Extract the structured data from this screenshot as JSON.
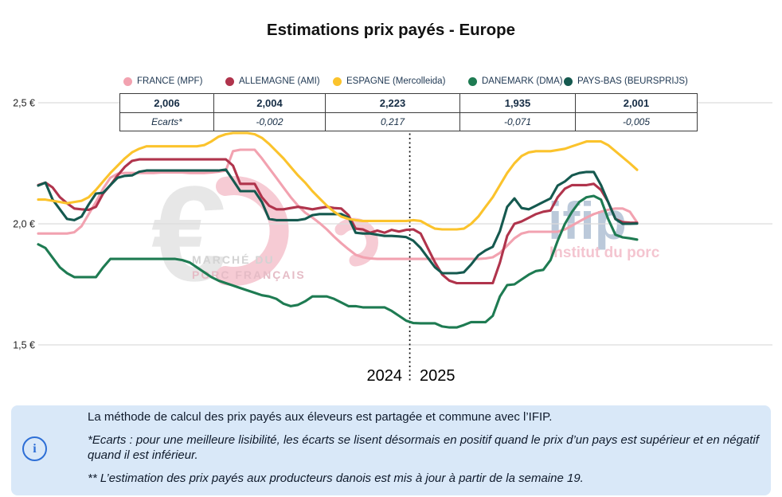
{
  "title": "Estimations prix payés - Europe",
  "summary_table": {
    "values": [
      "2,006",
      "2,004",
      "2,223",
      "1,935",
      "2,001"
    ],
    "ecarts_label": "Ecarts*",
    "ecarts": [
      "-0,002",
      "0,217",
      "-0,071",
      "-0,005"
    ]
  },
  "watermarks": {
    "euro_glyph": "€",
    "mpf_line1": "MARCHÉ DU",
    "mpf_line2": "PORC FRANÇAIS",
    "ifip": "ifip",
    "ifip_sub": "Institut du porc"
  },
  "info_panel": {
    "icon": "info-circle",
    "line1": "La méthode de calcul des prix payés aux éleveurs est partagée et commune avec l’IFIP.",
    "line2": "*Ecarts : pour une meilleure lisibilité, les écarts se lisent désormais en positif quand le prix d’un pays est supérieur et en négatif quand il est inférieur.",
    "line3": "** L’estimation des prix payés aux producteurs danois est mis à jour à partir de la semaine 19."
  },
  "chart_data": {
    "type": "line",
    "title": "Estimations prix payés - Europe",
    "x_unit": "week",
    "x_range": "2024 semaine 1 → 2025 semaine 32",
    "weeks_in_first_year": 52,
    "year_labels": [
      "2024",
      "2025"
    ],
    "ylim": [
      1.45,
      2.55
    ],
    "grid": true,
    "yticks": [
      {
        "label": "2,5 €",
        "value": 2.5
      },
      {
        "label": "2,0 €",
        "value": 2.0
      },
      {
        "label": "1,5 €",
        "value": 1.5
      }
    ],
    "series": [
      {
        "name": "FRANCE (MPF)",
        "color": "#F2A2B0",
        "last_value": 2.006,
        "values": [
          1.96,
          1.96,
          1.96,
          1.96,
          1.96,
          1.965,
          1.99,
          2.04,
          2.09,
          2.145,
          2.19,
          2.207,
          2.21,
          2.21,
          2.21,
          2.21,
          2.21,
          2.212,
          2.212,
          2.212,
          2.212,
          2.21,
          2.21,
          2.21,
          2.212,
          2.215,
          2.22,
          2.3,
          2.306,
          2.306,
          2.306,
          2.27,
          2.23,
          2.19,
          2.15,
          2.11,
          2.075,
          2.046,
          2.026,
          2.003,
          1.977,
          1.947,
          1.92,
          1.895,
          1.872,
          1.862,
          1.857,
          1.855,
          1.855,
          1.855,
          1.855,
          1.855,
          1.855,
          1.855,
          1.855,
          1.855,
          1.855,
          1.855,
          1.855,
          1.855,
          1.855,
          1.855,
          1.857,
          1.862,
          1.88,
          1.91,
          1.94,
          1.96,
          1.967,
          1.967,
          1.967,
          1.967,
          1.967,
          1.977,
          1.993,
          2.01,
          2.026,
          2.04,
          2.05,
          2.058,
          2.063,
          2.063,
          2.05,
          2.006
        ]
      },
      {
        "name": "ALLEMAGNE (AMI)",
        "color": "#B0344C",
        "last_value": 2.004,
        "values": [
          2.16,
          2.17,
          2.15,
          2.11,
          2.085,
          2.063,
          2.06,
          2.058,
          2.07,
          2.125,
          2.16,
          2.2,
          2.235,
          2.26,
          2.266,
          2.266,
          2.266,
          2.266,
          2.266,
          2.266,
          2.266,
          2.266,
          2.266,
          2.266,
          2.266,
          2.266,
          2.266,
          2.24,
          2.165,
          2.165,
          2.165,
          2.11,
          2.075,
          2.06,
          2.06,
          2.065,
          2.07,
          2.065,
          2.06,
          2.065,
          2.07,
          2.065,
          2.063,
          2.036,
          1.98,
          1.977,
          1.963,
          1.972,
          1.963,
          1.975,
          1.968,
          1.975,
          1.977,
          1.96,
          1.9,
          1.84,
          1.79,
          1.765,
          1.755,
          1.755,
          1.755,
          1.755,
          1.755,
          1.755,
          1.84,
          1.95,
          2.0,
          2.01,
          2.025,
          2.04,
          2.05,
          2.055,
          2.11,
          2.145,
          2.16,
          2.16,
          2.16,
          2.165,
          2.14,
          2.09,
          2.02,
          2.007,
          2.005,
          2.004
        ]
      },
      {
        "name": "ESPAGNE (Mercolleida)",
        "color": "#FBC32C",
        "last_value": 2.223,
        "values": [
          2.1,
          2.1,
          2.095,
          2.09,
          2.085,
          2.09,
          2.095,
          2.11,
          2.14,
          2.175,
          2.21,
          2.24,
          2.27,
          2.295,
          2.31,
          2.32,
          2.32,
          2.32,
          2.32,
          2.32,
          2.32,
          2.32,
          2.32,
          2.325,
          2.34,
          2.36,
          2.37,
          2.375,
          2.375,
          2.375,
          2.37,
          2.355,
          2.33,
          2.3,
          2.27,
          2.235,
          2.2,
          2.17,
          2.135,
          2.105,
          2.075,
          2.05,
          2.03,
          2.02,
          2.015,
          2.012,
          2.012,
          2.012,
          2.012,
          2.012,
          2.012,
          2.012,
          2.015,
          2.012,
          1.995,
          1.98,
          1.977,
          1.977,
          1.977,
          1.98,
          2.0,
          2.03,
          2.07,
          2.11,
          2.16,
          2.21,
          2.25,
          2.28,
          2.295,
          2.3,
          2.3,
          2.3,
          2.305,
          2.31,
          2.32,
          2.33,
          2.34,
          2.34,
          2.34,
          2.325,
          2.3,
          2.275,
          2.25,
          2.223
        ]
      },
      {
        "name": "DANEMARK (DMA)",
        "color": "#1E7B52",
        "last_value": 1.935,
        "values": [
          1.915,
          1.9,
          1.86,
          1.82,
          1.796,
          1.78,
          1.78,
          1.78,
          1.78,
          1.82,
          1.855,
          1.855,
          1.855,
          1.855,
          1.855,
          1.855,
          1.855,
          1.855,
          1.855,
          1.855,
          1.85,
          1.84,
          1.82,
          1.8,
          1.78,
          1.765,
          1.755,
          1.745,
          1.735,
          1.725,
          1.715,
          1.705,
          1.7,
          1.69,
          1.67,
          1.66,
          1.665,
          1.68,
          1.7,
          1.7,
          1.7,
          1.69,
          1.675,
          1.66,
          1.66,
          1.655,
          1.655,
          1.655,
          1.655,
          1.64,
          1.62,
          1.6,
          1.59,
          1.589,
          1.589,
          1.589,
          1.576,
          1.572,
          1.572,
          1.582,
          1.594,
          1.594,
          1.594,
          1.62,
          1.7,
          1.747,
          1.75,
          1.77,
          1.79,
          1.805,
          1.81,
          1.85,
          1.93,
          2.0,
          2.05,
          2.09,
          2.11,
          2.115,
          2.1,
          2.02,
          1.955,
          1.944,
          1.94,
          1.935
        ]
      },
      {
        "name": "PAYS-BAS (BEURSPRIJS)",
        "color": "#15594F",
        "last_value": 2.001,
        "values": [
          2.158,
          2.17,
          2.1,
          2.06,
          2.02,
          2.015,
          2.03,
          2.08,
          2.125,
          2.128,
          2.16,
          2.19,
          2.198,
          2.2,
          2.215,
          2.22,
          2.22,
          2.22,
          2.22,
          2.22,
          2.22,
          2.22,
          2.22,
          2.22,
          2.22,
          2.22,
          2.224,
          2.18,
          2.135,
          2.135,
          2.135,
          2.09,
          2.02,
          2.015,
          2.015,
          2.015,
          2.015,
          2.02,
          2.036,
          2.04,
          2.04,
          2.04,
          2.04,
          2.026,
          1.963,
          1.96,
          1.96,
          1.955,
          1.95,
          1.95,
          1.948,
          1.945,
          1.93,
          1.9,
          1.86,
          1.82,
          1.796,
          1.796,
          1.796,
          1.8,
          1.832,
          1.87,
          1.89,
          1.905,
          1.97,
          2.07,
          2.105,
          2.065,
          2.06,
          2.075,
          2.09,
          2.105,
          2.158,
          2.175,
          2.2,
          2.21,
          2.214,
          2.214,
          2.16,
          2.09,
          2.02,
          2.0,
          2.0,
          2.001
        ]
      }
    ],
    "legend_position": "top",
    "colors": {
      "grid": "#DCDCDC",
      "divider": "#111111",
      "info_bg": "#D9E8F8",
      "info_accent": "#2E6FD6",
      "text": "#152C44"
    }
  }
}
